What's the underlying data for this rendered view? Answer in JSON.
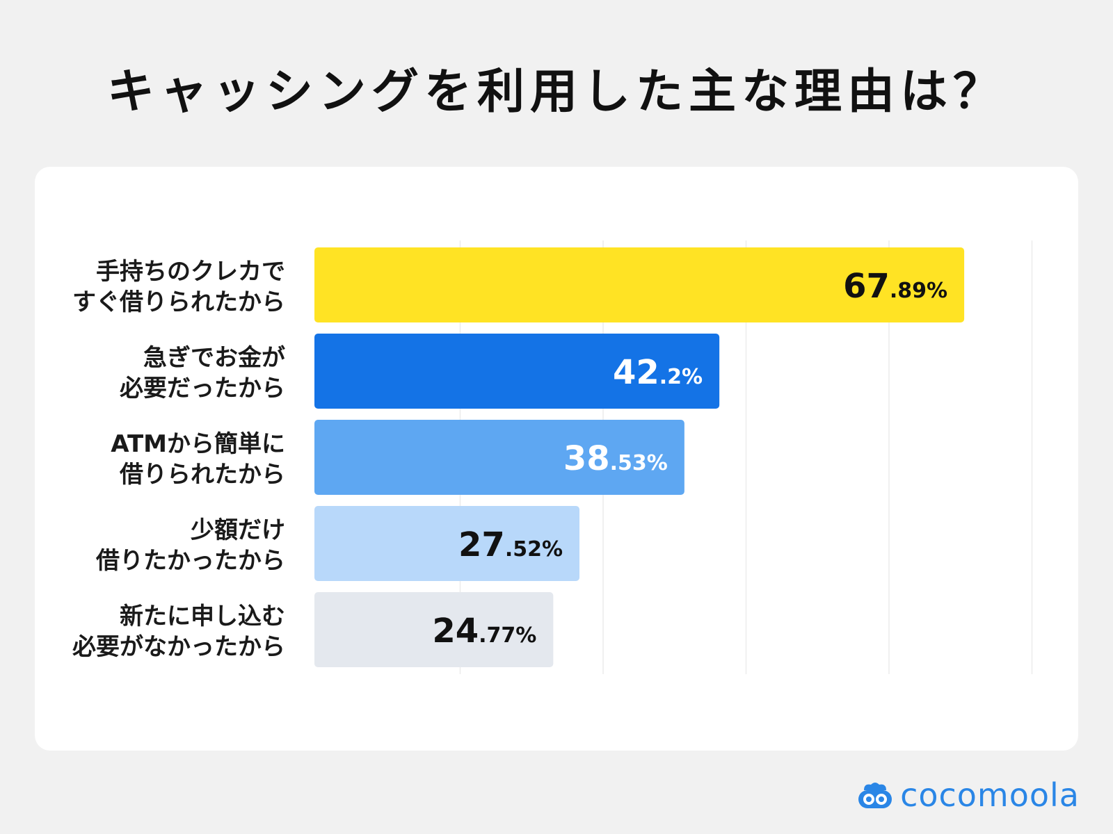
{
  "title": "キャッシングを利用した主な理由は？",
  "brand": "cocomoola",
  "colors": {
    "background": "#f1f1f1",
    "card": "#ffffff",
    "grid": "#ececec",
    "brand": "#2a86e6"
  },
  "chart_data": {
    "type": "bar",
    "orientation": "horizontal",
    "title": "キャッシングを利用した主な理由は？",
    "xlabel": "",
    "ylabel": "",
    "xlim": [
      0,
      75
    ],
    "grid": true,
    "legend": "none",
    "categories": [
      [
        "手持ちのクレカで",
        "すぐ借りられたから"
      ],
      [
        "急ぎでお金が",
        "必要だったから"
      ],
      [
        "ATMから簡単に",
        "借りられたから"
      ],
      [
        "少額だけ",
        "借りたかったから"
      ],
      [
        "新たに申し込む",
        "必要がなかったから"
      ]
    ],
    "values": [
      67.89,
      42.2,
      38.53,
      27.52,
      24.77
    ],
    "value_labels": [
      {
        "int": "67",
        "dec": ".89%"
      },
      {
        "int": "42",
        "dec": ".2%"
      },
      {
        "int": "38",
        "dec": ".53%"
      },
      {
        "int": "27",
        "dec": ".52%"
      },
      {
        "int": "24",
        "dec": ".77%"
      }
    ],
    "bar_colors": [
      "#ffe324",
      "#1473e6",
      "#5ea7f2",
      "#b8d8fa",
      "#e4e8ee"
    ],
    "label_colors": [
      "#111111",
      "#ffffff",
      "#ffffff",
      "#111111",
      "#111111"
    ]
  }
}
